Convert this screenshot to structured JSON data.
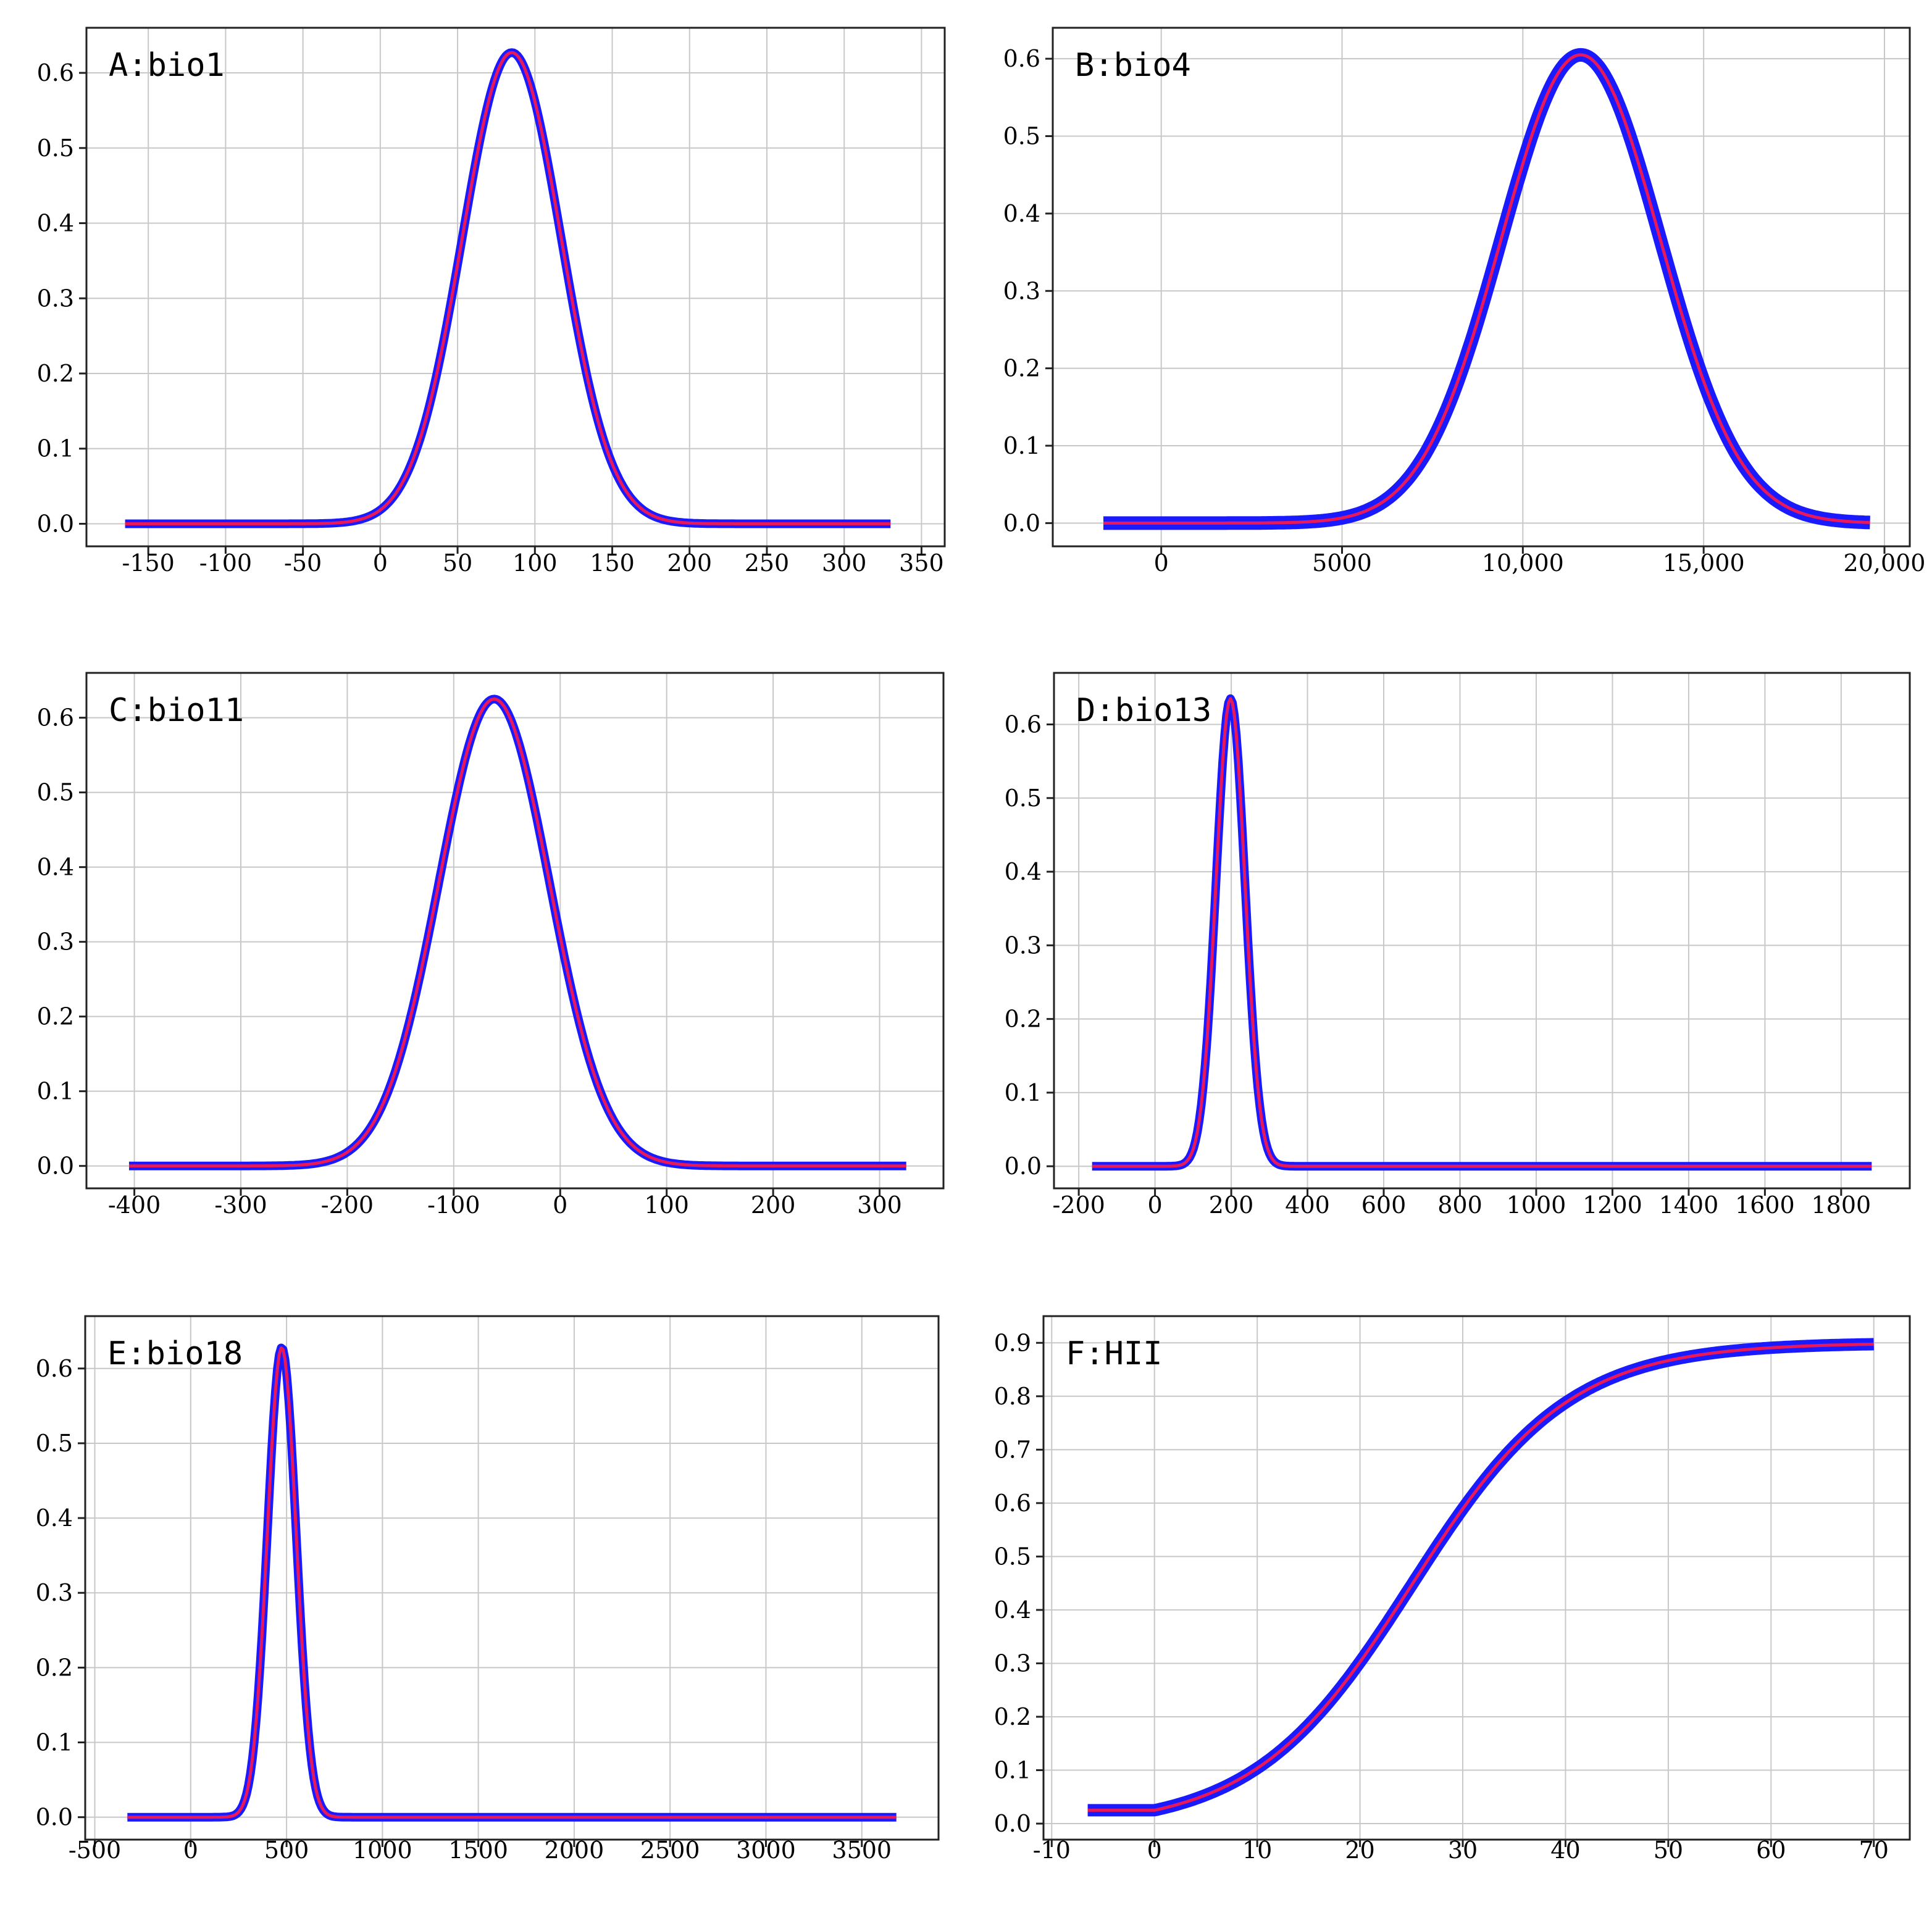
{
  "chart_data": [
    {
      "type": "line",
      "title": "A:bio1",
      "xticks": [
        -150,
        -100,
        -50,
        0,
        50,
        100,
        150,
        200,
        250,
        300,
        350
      ],
      "yticks": [
        0.0,
        0.1,
        0.2,
        0.3,
        0.4,
        0.5,
        0.6
      ],
      "xticklabels": [
        "-150",
        "-100",
        "-50",
        "0",
        "50",
        "100",
        "150",
        "200",
        "250",
        "300",
        "350"
      ],
      "yticklabels": [
        "0.0",
        "0.1",
        "0.2",
        "0.3",
        "0.4",
        "0.5",
        "0.6"
      ],
      "xlim": [
        -190,
        365
      ],
      "ylim": [
        -0.03,
        0.66
      ],
      "curve": {
        "shape": "gaussian",
        "x_range": [
          -165,
          330
        ],
        "peak_x": 85,
        "peak_y": 0.627,
        "sigma": 32
      },
      "series": [
        {
          "name": "confidence band",
          "color": "#1a1aff"
        },
        {
          "name": "mean response",
          "color": "#e8195a"
        }
      ]
    },
    {
      "type": "line",
      "title": "B:bio4",
      "xticks": [
        0,
        5000,
        10000,
        15000,
        20000
      ],
      "yticks": [
        0.0,
        0.1,
        0.2,
        0.3,
        0.4,
        0.5,
        0.6
      ],
      "xticklabels": [
        "0",
        "5000",
        "10,000",
        "15,000",
        "20,000"
      ],
      "yticklabels": [
        "0.0",
        "0.1",
        "0.2",
        "0.3",
        "0.4",
        "0.5",
        "0.6"
      ],
      "xlim": [
        -3000,
        20700
      ],
      "ylim": [
        -0.03,
        0.64
      ],
      "curve": {
        "shape": "gaussian",
        "x_range": [
          -1600,
          19600
        ],
        "peak_x": 11600,
        "peak_y": 0.605,
        "sigma": 2200
      },
      "series": [
        {
          "name": "confidence band",
          "color": "#1a1aff"
        },
        {
          "name": "mean response",
          "color": "#e8195a"
        }
      ]
    },
    {
      "type": "line",
      "title": "C:bio11",
      "xticks": [
        -400,
        -300,
        -200,
        -100,
        0,
        100,
        200,
        300
      ],
      "yticks": [
        0.0,
        0.1,
        0.2,
        0.3,
        0.4,
        0.5,
        0.6
      ],
      "xticklabels": [
        "-400",
        "-300",
        "-200",
        "-100",
        "0",
        "100",
        "200",
        "300"
      ],
      "yticklabels": [
        "0.0",
        "0.1",
        "0.2",
        "0.3",
        "0.4",
        "0.5",
        "0.6"
      ],
      "xlim": [
        -445,
        360
      ],
      "ylim": [
        -0.03,
        0.66
      ],
      "curve": {
        "shape": "gaussian",
        "x_range": [
          -405,
          325
        ],
        "peak_x": -62,
        "peak_y": 0.625,
        "sigma": 52
      },
      "series": [
        {
          "name": "confidence band",
          "color": "#1a1aff"
        },
        {
          "name": "mean response",
          "color": "#e8195a"
        }
      ]
    },
    {
      "type": "line",
      "title": "D:bio13",
      "xticks": [
        -200,
        0,
        200,
        400,
        600,
        800,
        1000,
        1200,
        1400,
        1600,
        1800
      ],
      "yticks": [
        0.0,
        0.1,
        0.2,
        0.3,
        0.4,
        0.5,
        0.6
      ],
      "xticklabels": [
        "-200",
        "0",
        "200",
        "400",
        "600",
        "800",
        "1000",
        "1200",
        "1400",
        "1600",
        "1800"
      ],
      "yticklabels": [
        "0.0",
        "0.1",
        "0.2",
        "0.3",
        "0.4",
        "0.5",
        "0.6"
      ],
      "xlim": [
        -265,
        1980
      ],
      "ylim": [
        -0.03,
        0.67
      ],
      "curve": {
        "shape": "gaussian",
        "x_range": [
          -165,
          1880
        ],
        "peak_x": 198,
        "peak_y": 0.635,
        "sigma": 38
      },
      "series": [
        {
          "name": "confidence band",
          "color": "#1a1aff"
        },
        {
          "name": "mean response",
          "color": "#e8195a"
        }
      ]
    },
    {
      "type": "line",
      "title": "E:bio18",
      "xticks": [
        -500,
        0,
        500,
        1000,
        1500,
        2000,
        2500,
        3000,
        3500
      ],
      "yticks": [
        0.0,
        0.1,
        0.2,
        0.3,
        0.4,
        0.5,
        0.6
      ],
      "xticklabels": [
        "-500",
        "0",
        "500",
        "1000",
        "1500",
        "2000",
        "2500",
        "3000",
        "3500"
      ],
      "yticklabels": [
        "0.0",
        "0.1",
        "0.2",
        "0.3",
        "0.4",
        "0.5",
        "0.6"
      ],
      "xlim": [
        -550,
        3900
      ],
      "ylim": [
        -0.03,
        0.67
      ],
      "curve": {
        "shape": "gaussian",
        "x_range": [
          -330,
          3680
        ],
        "peak_x": 475,
        "peak_y": 0.628,
        "sigma": 75
      },
      "series": [
        {
          "name": "confidence band",
          "color": "#1a1aff"
        },
        {
          "name": "mean response",
          "color": "#e8195a"
        }
      ]
    },
    {
      "type": "line",
      "title": "F:HII",
      "xticks": [
        -10,
        0,
        10,
        20,
        30,
        40,
        50,
        60,
        70
      ],
      "yticks": [
        0.0,
        0.1,
        0.2,
        0.3,
        0.4,
        0.5,
        0.6,
        0.7,
        0.8,
        0.9
      ],
      "xticklabels": [
        "-10",
        "0",
        "10",
        "20",
        "30",
        "40",
        "50",
        "60",
        "70"
      ],
      "yticklabels": [
        "0.0",
        "0.1",
        "0.2",
        "0.3",
        "0.4",
        "0.5",
        "0.6",
        "0.7",
        "0.8",
        "0.9"
      ],
      "xlim": [
        -10.8,
        73.5
      ],
      "ylim": [
        -0.03,
        0.95
      ],
      "curve": {
        "shape": "sigmoid",
        "x_range": [
          -6.5,
          70
        ],
        "flat_below_x": 0,
        "y_min": 0.025,
        "y_max": 0.9,
        "mid_x": 25,
        "sigma": 13
      },
      "series": [
        {
          "name": "confidence band",
          "color": "#1a1aff"
        },
        {
          "name": "mean response",
          "color": "#e8195a"
        }
      ]
    }
  ]
}
